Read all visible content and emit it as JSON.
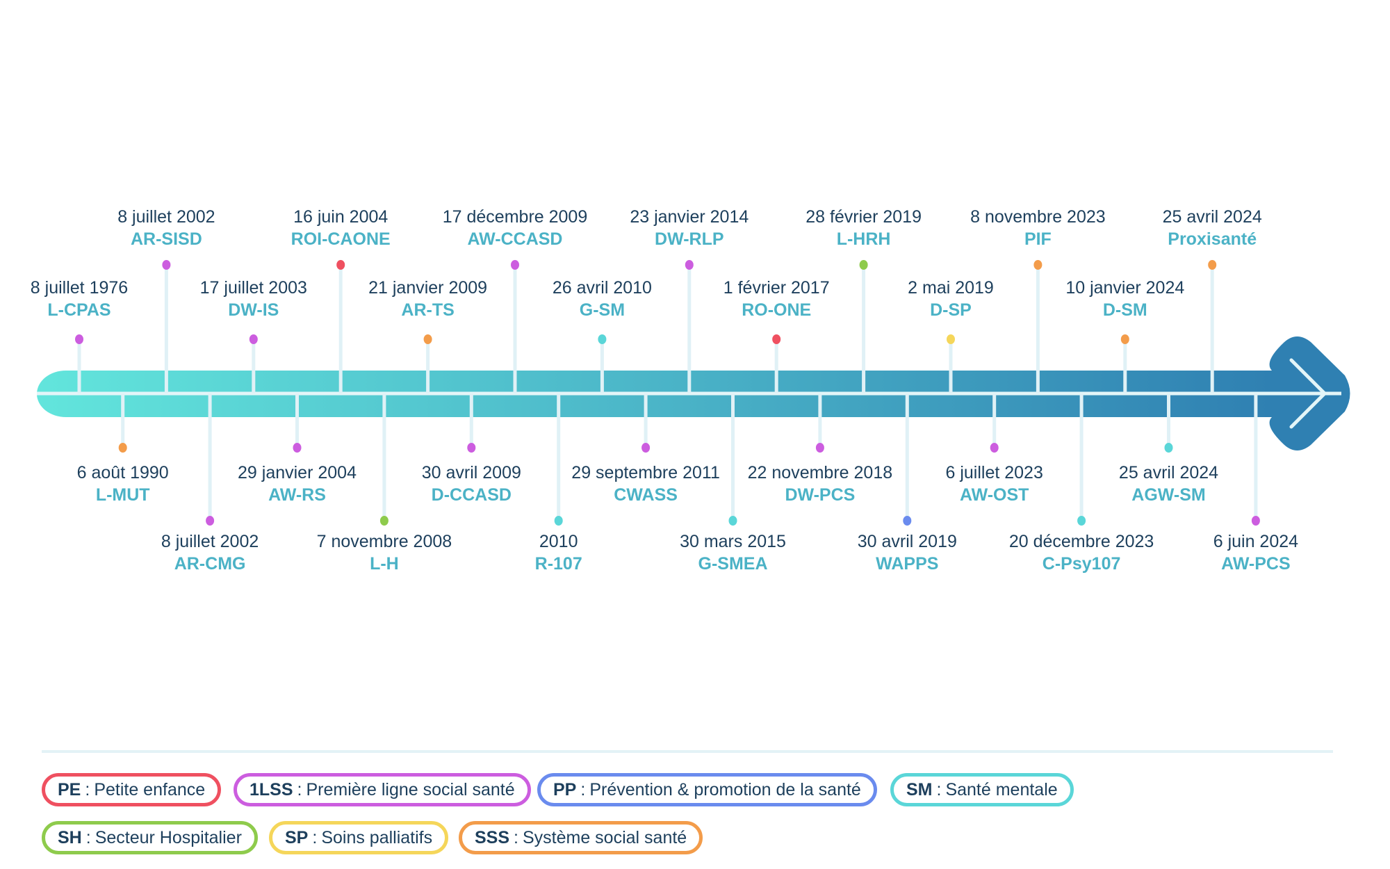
{
  "categories": [
    {
      "abbr": "PE",
      "label": "Petite enfance",
      "color": "#ef5060"
    },
    {
      "abbr": "1LSS",
      "label": "Première ligne social santé",
      "color": "#cc5ddf"
    },
    {
      "abbr": "PP",
      "label": "Prévention & promotion de la santé",
      "color": "#6a8bee"
    },
    {
      "abbr": "SM",
      "label": "Santé mentale",
      "color": "#5ad6d8"
    },
    {
      "abbr": "SH",
      "label": "Secteur Hospitalier",
      "color": "#8ecb4c"
    },
    {
      "abbr": "SP",
      "label": "Soins palliatifs",
      "color": "#f5d65a"
    },
    {
      "abbr": "SSS",
      "label": "Système social santé",
      "color": "#f39c4a"
    }
  ],
  "legend_separator": ":",
  "events": [
    {
      "date": "8 juillet 1976",
      "code": "L-CPAS",
      "cat": "1LSS",
      "side": "top",
      "level": 1
    },
    {
      "date": "6 août 1990",
      "code": "L-MUT",
      "cat": "SSS",
      "side": "bottom",
      "level": 1
    },
    {
      "date": "8 juillet 2002",
      "code": "AR-SISD",
      "cat": "1LSS",
      "side": "top",
      "level": 2
    },
    {
      "date": "8 juillet 2002",
      "code": "AR-CMG",
      "cat": "1LSS",
      "side": "bottom",
      "level": 2
    },
    {
      "date": "17  juillet 2003",
      "code": "DW-IS",
      "cat": "1LSS",
      "side": "top",
      "level": 1
    },
    {
      "date": "29 janvier 2004",
      "code": "AW-RS",
      "cat": "1LSS",
      "side": "bottom",
      "level": 1
    },
    {
      "date": "16 juin 2004",
      "code": "ROI-CAONE",
      "cat": "PE",
      "side": "top",
      "level": 2
    },
    {
      "date": "7 novembre 2008",
      "code": "L-H",
      "cat": "SH",
      "side": "bottom",
      "level": 2
    },
    {
      "date": "21 janvier 2009",
      "code": "AR-TS",
      "cat": "SSS",
      "side": "top",
      "level": 1
    },
    {
      "date": "30 avril 2009",
      "code": "D-CCASD",
      "cat": "1LSS",
      "side": "bottom",
      "level": 1
    },
    {
      "date": "17 décembre 2009",
      "code": "AW-CCASD",
      "cat": "1LSS",
      "side": "top",
      "level": 2
    },
    {
      "date": "2010",
      "code": "R-107",
      "cat": "SM",
      "side": "bottom",
      "level": 2
    },
    {
      "date": "26 avril 2010",
      "code": "G-SM",
      "cat": "SM",
      "side": "top",
      "level": 1
    },
    {
      "date": "29 septembre 2011",
      "code": "CWASS",
      "cat": "1LSS",
      "side": "bottom",
      "level": 1
    },
    {
      "date": "23 janvier 2014",
      "code": "DW-RLP",
      "cat": "1LSS",
      "side": "top",
      "level": 2
    },
    {
      "date": "30 mars 2015",
      "code": "G-SMEA",
      "cat": "SM",
      "side": "bottom",
      "level": 2
    },
    {
      "date": "1 février 2017",
      "code": "RO-ONE",
      "cat": "PE",
      "side": "top",
      "level": 1
    },
    {
      "date": "22 novembre 2018",
      "code": "DW-PCS",
      "cat": "1LSS",
      "side": "bottom",
      "level": 1
    },
    {
      "date": "28 février 2019",
      "code": "L-HRH",
      "cat": "SH",
      "side": "top",
      "level": 2
    },
    {
      "date": "30 avril 2019",
      "code": "WAPPS",
      "cat": "PP",
      "side": "bottom",
      "level": 2
    },
    {
      "date": "2 mai 2019",
      "code": "D-SP",
      "cat": "SP",
      "side": "top",
      "level": 1
    },
    {
      "date": "6 juillet 2023",
      "code": "AW-OST",
      "cat": "1LSS",
      "side": "bottom",
      "level": 1
    },
    {
      "date": "8 novembre 2023",
      "code": "PIF",
      "cat": "SSS",
      "side": "top",
      "level": 2
    },
    {
      "date": "20 décembre 2023",
      "code": "C-Psy107",
      "cat": "SM",
      "side": "bottom",
      "level": 2
    },
    {
      "date": "10 janvier 2024",
      "code": "D-SM",
      "cat": "SSS",
      "side": "top",
      "level": 1
    },
    {
      "date": "25 avril 2024",
      "code": "AGW-SM",
      "cat": "SM",
      "side": "bottom",
      "level": 1
    },
    {
      "date": "25 avril 2024",
      "code": "Proxisanté",
      "cat": "SSS",
      "side": "top",
      "level": 2
    },
    {
      "date": "6 juin 2024",
      "code": "AW-PCS",
      "cat": "1LSS",
      "side": "bottom",
      "level": 2
    }
  ]
}
